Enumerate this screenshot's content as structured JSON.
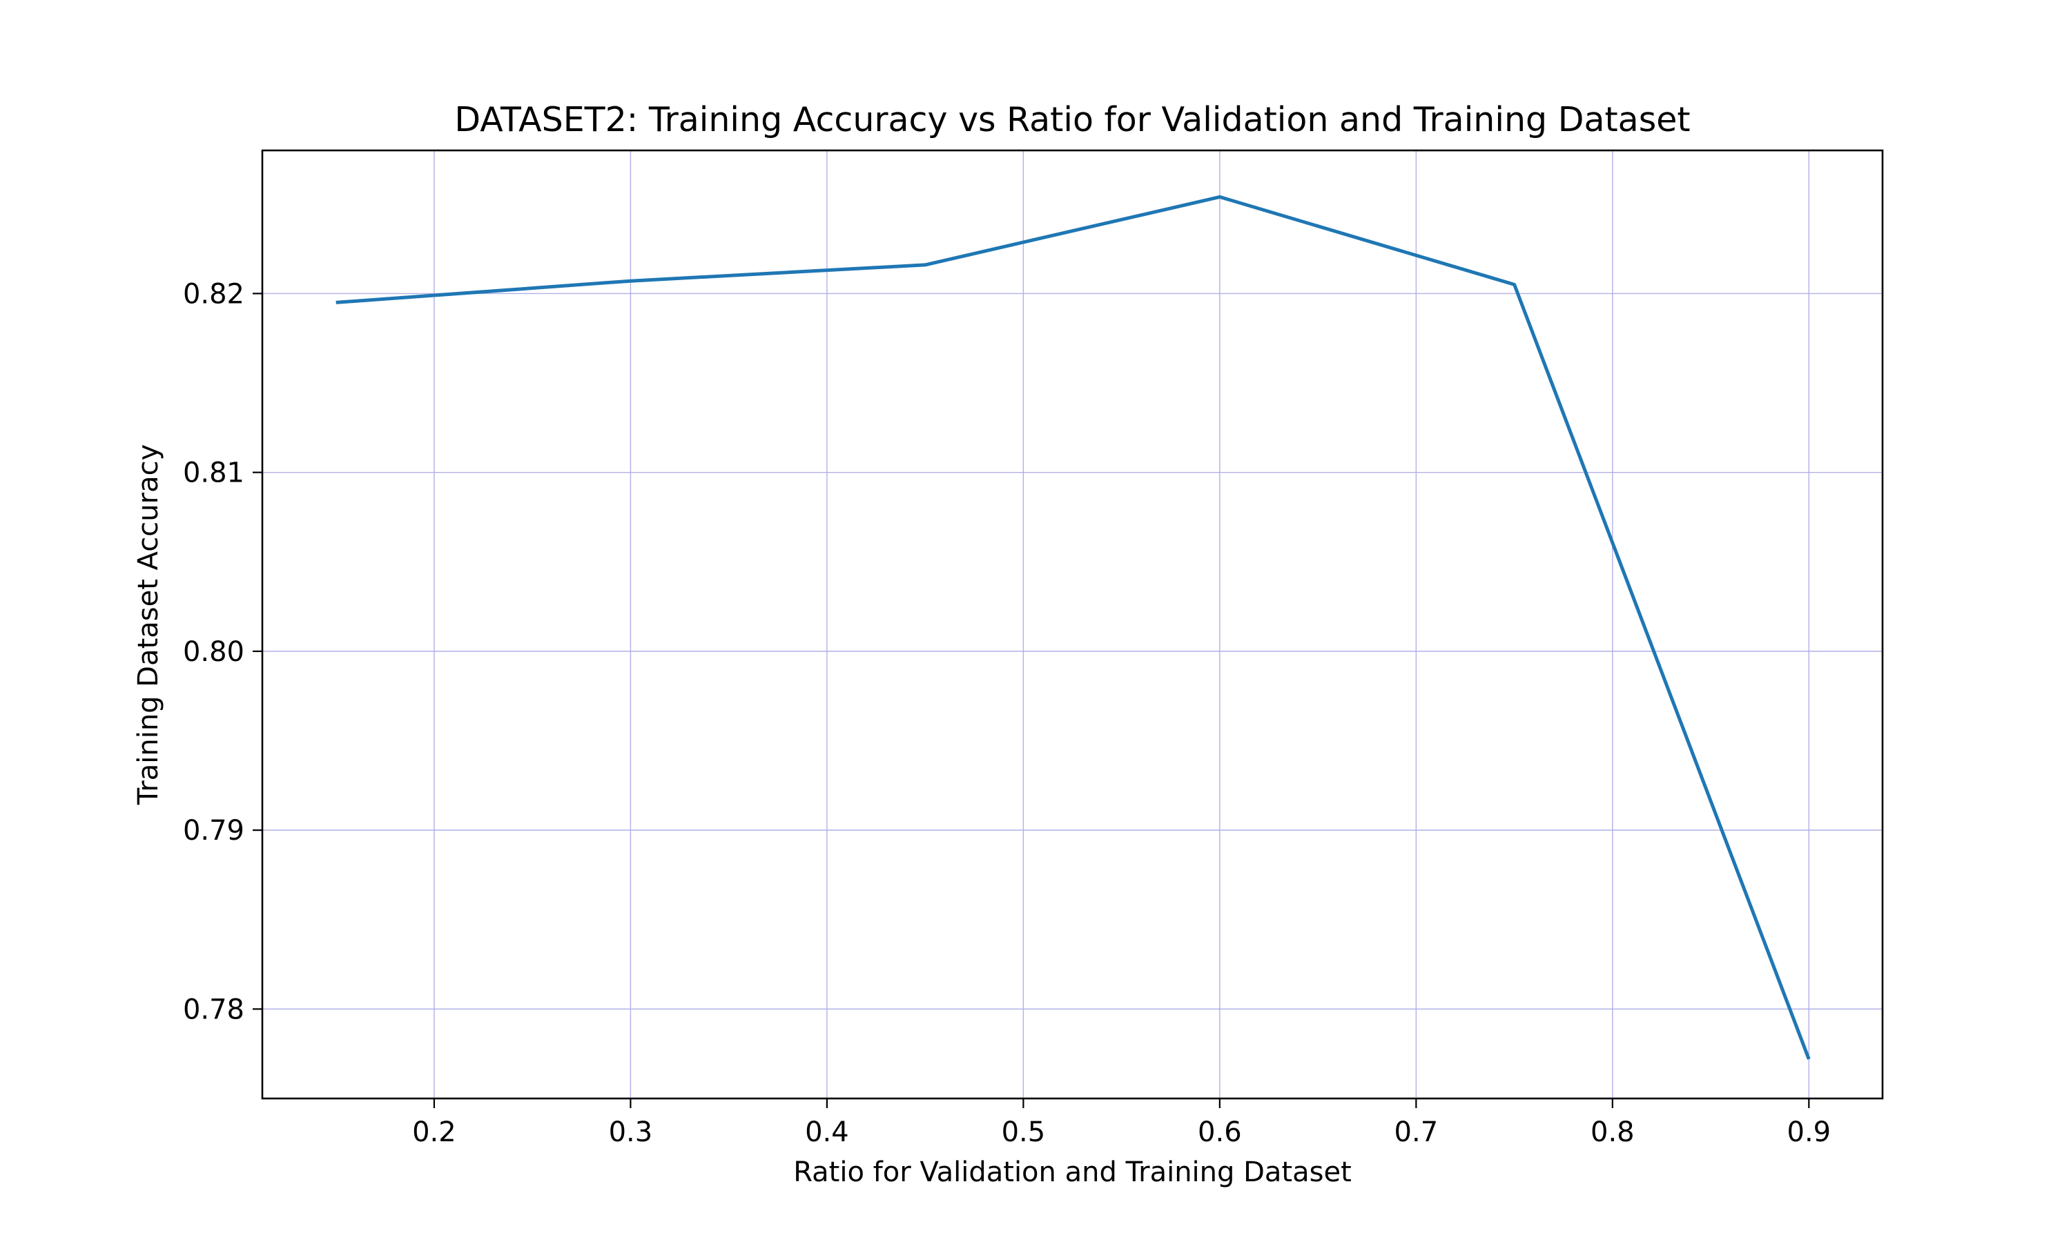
{
  "chart_data": {
    "type": "line",
    "title": "DATASET2: Training Accuracy vs Ratio for Validation and Training Dataset",
    "xlabel": "Ratio for Validation and Training Dataset",
    "ylabel": "Training Dataset Accuracy",
    "xlim": [
      0.1125,
      0.9375
    ],
    "ylim": [
      0.775,
      0.828
    ],
    "x_ticks": [
      0.2,
      0.3,
      0.4,
      0.5,
      0.6,
      0.7,
      0.8,
      0.9
    ],
    "x_tick_labels": [
      "0.2",
      "0.3",
      "0.4",
      "0.5",
      "0.6",
      "0.7",
      "0.8",
      "0.9"
    ],
    "y_ticks": [
      0.78,
      0.79,
      0.8,
      0.81,
      0.82
    ],
    "y_tick_labels": [
      "0.78",
      "0.79",
      "0.80",
      "0.81",
      "0.82"
    ],
    "grid": true,
    "grid_color": "#b0b0e8",
    "line_color": "#1f77b4",
    "series": [
      {
        "x": [
          0.15,
          0.3,
          0.45,
          0.6,
          0.75,
          0.9
        ],
        "y": [
          0.8195,
          0.8207,
          0.8216,
          0.8254,
          0.8205,
          0.7772
        ]
      }
    ]
  }
}
